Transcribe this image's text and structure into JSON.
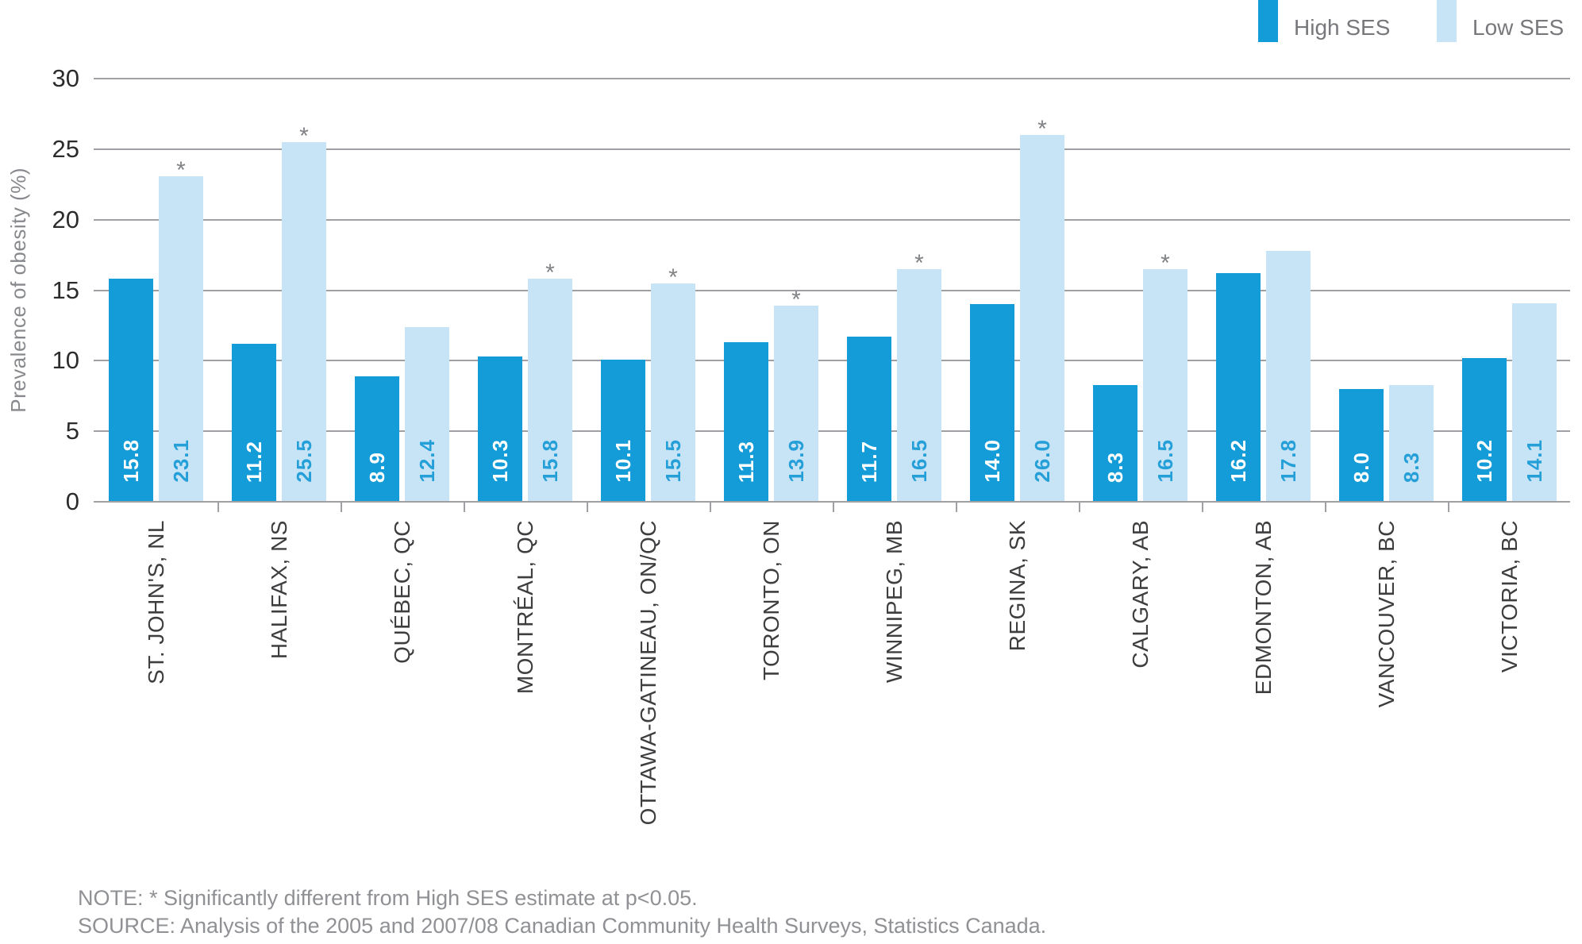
{
  "chart_data": {
    "type": "bar",
    "title": "",
    "ylabel": "Prevalence of obesity (%)",
    "xlabel": "",
    "ylim": [
      0,
      30
    ],
    "yticks": [
      0,
      5,
      10,
      15,
      20,
      25,
      30
    ],
    "grid": true,
    "legend_position": "top-right",
    "categories": [
      "ST. JOHN'S, NL",
      "HALIFAX, NS",
      "QUÉBEC, QC",
      "MONTRÉAL, QC",
      "OTTAWA-GATINEAU, ON/QC",
      "TORONTO, ON",
      "WINNIPEG, MB",
      "REGINA, SK",
      "CALGARY, AB",
      "EDMONTON, AB",
      "VANCOUVER, BC",
      "VICTORIA, BC"
    ],
    "legend": [
      {
        "label": "High SES",
        "color": "#139CD8"
      },
      {
        "label": "Low SES",
        "color": "#C6E4F6"
      }
    ],
    "series": [
      {
        "name": "High SES",
        "color": "#139CD8",
        "label_color": "#FFFFFF",
        "values": [
          15.8,
          11.2,
          8.9,
          10.3,
          10.1,
          11.3,
          11.7,
          14.0,
          8.3,
          16.2,
          8.0,
          10.2
        ],
        "labels": [
          "15.8",
          "11.2",
          "8.9",
          "10.3",
          "10.1",
          "11.3",
          "11.7",
          "14.0",
          "8.3",
          "16.2",
          "8.0",
          "10.2"
        ]
      },
      {
        "name": "Low SES",
        "color": "#C6E4F6",
        "label_color": "#259FD8",
        "values": [
          23.1,
          25.5,
          12.4,
          15.8,
          15.5,
          13.9,
          16.5,
          26.0,
          16.5,
          17.8,
          8.3,
          14.1
        ],
        "labels": [
          "23.1",
          "25.5",
          "12.4",
          "15.8",
          "15.5",
          "13.9",
          "16.5",
          "26.0",
          "16.5",
          "17.8",
          "8.3",
          "14.1"
        ]
      }
    ],
    "significance_marker": "*",
    "low_ses_significant": [
      true,
      true,
      false,
      true,
      true,
      true,
      true,
      true,
      true,
      false,
      false,
      false
    ]
  },
  "notes": {
    "note": "NOTE: * Significantly different from High SES estimate at p<0.05.",
    "source": "SOURCE: Analysis of the 2005 and 2007/08 Canadian Community Health Surveys, Statistics Canada."
  },
  "colors": {
    "high_ses": "#139CD8",
    "low_ses": "#C6E4F6",
    "gridline": "#9EA0A3",
    "axis_number_text": "#2C2C2D",
    "category_text": "#3E3E40",
    "muted_text": "#8F9194",
    "legend_text": "#77787B",
    "asterisk": "#808285"
  }
}
